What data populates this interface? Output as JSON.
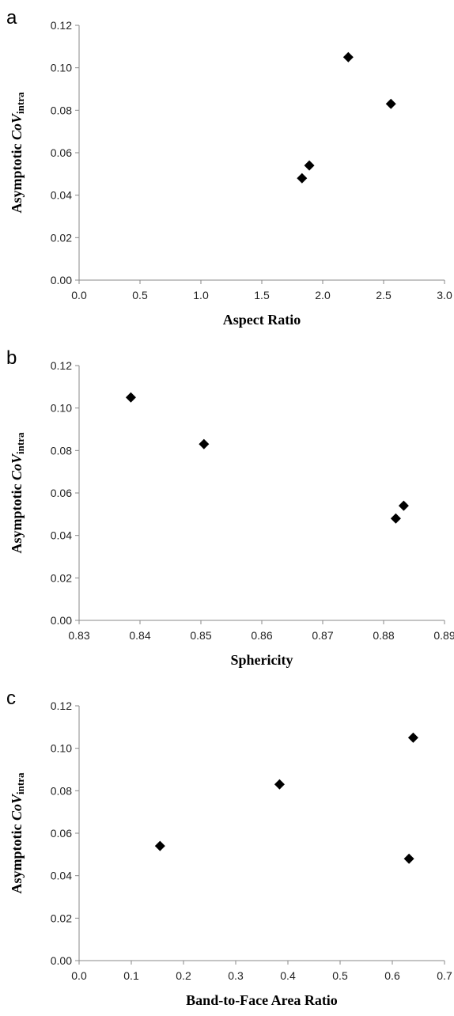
{
  "figure": {
    "ylabel_prefix": "Asymptotic ",
    "ylabel_italic": "CoV",
    "ylabel_subscript": "intra"
  },
  "chart_data": [
    {
      "type": "scatter",
      "panel_label": "a",
      "xlabel": "Aspect Ratio",
      "xlim": [
        0.0,
        3.0
      ],
      "ylim": [
        0.0,
        0.12
      ],
      "xticks": [
        "0.0",
        "0.5",
        "1.0",
        "1.5",
        "2.0",
        "2.5",
        "3.0"
      ],
      "xtick_values": [
        0.0,
        0.5,
        1.0,
        1.5,
        2.0,
        2.5,
        3.0
      ],
      "yticks": [
        "0.00",
        "0.02",
        "0.04",
        "0.06",
        "0.08",
        "0.10",
        "0.12"
      ],
      "ytick_values": [
        0.0,
        0.02,
        0.04,
        0.06,
        0.08,
        0.1,
        0.12
      ],
      "grid": false,
      "marker": "diamond",
      "points": [
        {
          "x": 1.83,
          "y": 0.048
        },
        {
          "x": 1.89,
          "y": 0.054
        },
        {
          "x": 2.21,
          "y": 0.105
        },
        {
          "x": 2.56,
          "y": 0.083
        }
      ]
    },
    {
      "type": "scatter",
      "panel_label": "b",
      "xlabel": "Sphericity",
      "xlim": [
        0.83,
        0.89
      ],
      "ylim": [
        0.0,
        0.12
      ],
      "xticks": [
        "0.83",
        "0.84",
        "0.85",
        "0.86",
        "0.87",
        "0.88",
        "0.89"
      ],
      "xtick_values": [
        0.83,
        0.84,
        0.85,
        0.86,
        0.87,
        0.88,
        0.89
      ],
      "yticks": [
        "0.00",
        "0.02",
        "0.04",
        "0.06",
        "0.08",
        "0.10",
        "0.12"
      ],
      "ytick_values": [
        0.0,
        0.02,
        0.04,
        0.06,
        0.08,
        0.1,
        0.12
      ],
      "grid": false,
      "marker": "diamond",
      "points": [
        {
          "x": 0.8385,
          "y": 0.105
        },
        {
          "x": 0.8505,
          "y": 0.083
        },
        {
          "x": 0.882,
          "y": 0.048
        },
        {
          "x": 0.8833,
          "y": 0.054
        }
      ]
    },
    {
      "type": "scatter",
      "panel_label": "c",
      "xlabel": "Band-to-Face Area Ratio",
      "xlim": [
        0.0,
        0.7
      ],
      "ylim": [
        0.0,
        0.12
      ],
      "xticks": [
        "0.0",
        "0.1",
        "0.2",
        "0.3",
        "0.4",
        "0.5",
        "0.6",
        "0.7"
      ],
      "xtick_values": [
        0.0,
        0.1,
        0.2,
        0.3,
        0.4,
        0.5,
        0.6,
        0.7
      ],
      "yticks": [
        "0.00",
        "0.02",
        "0.04",
        "0.06",
        "0.08",
        "0.10",
        "0.12"
      ],
      "ytick_values": [
        0.0,
        0.02,
        0.04,
        0.06,
        0.08,
        0.1,
        0.12
      ],
      "grid": false,
      "marker": "diamond",
      "points": [
        {
          "x": 0.155,
          "y": 0.054
        },
        {
          "x": 0.384,
          "y": 0.083
        },
        {
          "x": 0.632,
          "y": 0.048
        },
        {
          "x": 0.64,
          "y": 0.105
        }
      ]
    }
  ]
}
